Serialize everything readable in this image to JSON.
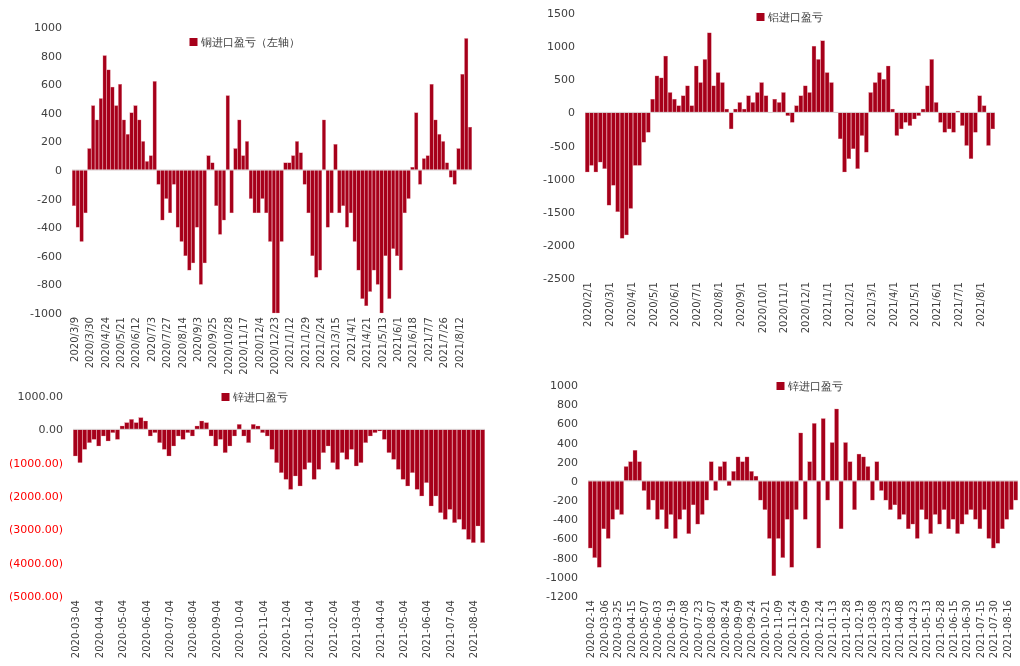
{
  "chart_data": [
    {
      "type": "bar",
      "legend": "top",
      "ylim": [
        -1000,
        1000
      ],
      "yticks": [
        -1000,
        -800,
        -600,
        -400,
        -200,
        0,
        200,
        400,
        600,
        800,
        1000
      ],
      "categories": [
        "2020/3/9",
        null,
        null,
        null,
        "2020/3/30",
        null,
        null,
        null,
        "2020/4/24",
        null,
        null,
        null,
        "2020/5/21",
        null,
        null,
        null,
        "2020/6/12",
        null,
        null,
        null,
        "2020/7/3",
        null,
        null,
        null,
        "2020/7/27",
        null,
        null,
        null,
        "2020/8/14",
        null,
        null,
        null,
        "2020/9/3",
        null,
        null,
        null,
        "2020/9/25",
        null,
        null,
        null,
        "2020/10/28",
        null,
        null,
        null,
        "2020/11/17",
        null,
        null,
        null,
        "2020/12/4",
        null,
        null,
        null,
        "2020/12/23",
        null,
        null,
        null,
        "2021/1/12",
        null,
        null,
        null,
        "2021/1/29",
        null,
        null,
        null,
        "2021/2/24",
        null,
        null,
        null,
        "2021/3/15",
        null,
        null,
        null,
        "2021/4/1",
        null,
        null,
        null,
        "2021/4/21",
        null,
        null,
        null,
        "2021/5/13",
        null,
        null,
        null,
        "2021/6/1",
        null,
        null,
        null,
        "2021/6/18",
        null,
        null,
        null,
        "2021/7/7",
        null,
        null,
        null,
        "2021/7/26",
        null,
        null,
        null,
        "2021/8/12",
        null,
        null,
        null
      ],
      "series": [
        {
          "name": "铜进口盈亏（左轴）",
          "color": "#a6001a",
          "values": [
            -250,
            -400,
            -500,
            -300,
            150,
            450,
            350,
            500,
            800,
            700,
            580,
            450,
            600,
            350,
            250,
            400,
            450,
            350,
            200,
            60,
            100,
            620,
            -100,
            -350,
            -200,
            -300,
            -100,
            -400,
            -500,
            -600,
            -700,
            -650,
            -400,
            -800,
            -650,
            100,
            50,
            -250,
            -450,
            -350,
            520,
            -300,
            150,
            350,
            100,
            200,
            -200,
            -300,
            -300,
            -200,
            -300,
            -500,
            -1000,
            -1000,
            -500,
            50,
            50,
            100,
            200,
            120,
            -100,
            -300,
            -600,
            -750,
            -700,
            350,
            -400,
            -300,
            180,
            -300,
            -250,
            -400,
            -300,
            -500,
            -700,
            -900,
            -950,
            -850,
            -700,
            -800,
            -1000,
            -600,
            -900,
            -550,
            -600,
            -700,
            -300,
            -200,
            20,
            400,
            -100,
            80,
            100,
            600,
            350,
            250,
            200,
            50,
            -50,
            -100,
            150,
            670,
            920,
            300
          ]
        }
      ]
    },
    {
      "type": "bar",
      "legend": "top",
      "ylim": [
        -2500,
        1500
      ],
      "yticks": [
        -2500,
        -2000,
        -1500,
        -1000,
        -500,
        0,
        500,
        1000,
        1500
      ],
      "categories": [
        "2020/2/1",
        null,
        null,
        null,
        null,
        "2020/3/1",
        null,
        null,
        null,
        null,
        "2020/4/1",
        null,
        null,
        null,
        null,
        "2020/5/1",
        null,
        null,
        null,
        null,
        "2020/6/1",
        null,
        null,
        null,
        null,
        "2020/7/1",
        null,
        null,
        null,
        null,
        "2020/8/1",
        null,
        null,
        null,
        null,
        "2020/9/1",
        null,
        null,
        null,
        null,
        "2020/10/1",
        null,
        null,
        null,
        null,
        "2020/11/1",
        null,
        null,
        null,
        null,
        "2020/12/1",
        null,
        null,
        null,
        null,
        "2021/1/1",
        null,
        null,
        null,
        null,
        "2021/2/1",
        null,
        null,
        null,
        null,
        "2021/3/1",
        null,
        null,
        null,
        null,
        "2021/4/1",
        null,
        null,
        null,
        null,
        "2021/5/1",
        null,
        null,
        null,
        null,
        "2021/6/1",
        null,
        null,
        null,
        null,
        "2021/7/1",
        null,
        null,
        null,
        null,
        "2021/8/1",
        null,
        null,
        null
      ],
      "series": [
        {
          "name": "铝进口盈亏",
          "color": "#a6001a",
          "values": [
            -900,
            -800,
            -900,
            -750,
            -850,
            -1400,
            -1100,
            -1500,
            -1900,
            -1850,
            -1450,
            -800,
            -800,
            -450,
            -300,
            200,
            550,
            520,
            850,
            300,
            200,
            100,
            250,
            400,
            100,
            700,
            450,
            800,
            1200,
            400,
            600,
            450,
            50,
            -250,
            50,
            150,
            50,
            250,
            150,
            300,
            450,
            250,
            0,
            200,
            150,
            300,
            -50,
            -150,
            100,
            250,
            400,
            300,
            1000,
            800,
            1080,
            600,
            450,
            0,
            -400,
            -900,
            -700,
            -550,
            -850,
            -350,
            -600,
            300,
            450,
            600,
            500,
            700,
            50,
            -350,
            -250,
            -150,
            -200,
            -100,
            -50,
            50,
            400,
            800,
            150,
            -150,
            -300,
            -250,
            -300,
            20,
            -200,
            -500,
            -700,
            -300,
            250,
            100,
            -500,
            -250
          ]
        }
      ]
    },
    {
      "type": "bar",
      "legend": "top",
      "ylim": [
        -5000,
        1000
      ],
      "yticks": [
        {
          "value": -5000,
          "label": "(5000.00)"
        },
        {
          "value": -4000,
          "label": "(4000.00)"
        },
        {
          "value": -3000,
          "label": "(3000.00)"
        },
        {
          "value": -2000,
          "label": "(2000.00)"
        },
        {
          "value": -1000,
          "label": "(1000.00)"
        },
        {
          "value": 0,
          "label": "0.00"
        },
        {
          "value": 1000,
          "label": "1000.00"
        }
      ],
      "categories": [
        "2020-03-04",
        null,
        null,
        null,
        null,
        "2020-04-04",
        null,
        null,
        null,
        null,
        "2020-05-04",
        null,
        null,
        null,
        null,
        "2020-06-04",
        null,
        null,
        null,
        null,
        "2020-07-04",
        null,
        null,
        null,
        null,
        "2020-08-04",
        null,
        null,
        null,
        null,
        "2020-09-04",
        null,
        null,
        null,
        null,
        "2020-10-04",
        null,
        null,
        null,
        null,
        "2020-11-04",
        null,
        null,
        null,
        null,
        "2020-12-04",
        null,
        null,
        null,
        null,
        "2021-01-04",
        null,
        null,
        null,
        null,
        "2021-02-04",
        null,
        null,
        null,
        null,
        "2021-03-04",
        null,
        null,
        null,
        null,
        "2021-04-04",
        null,
        null,
        null,
        null,
        "2021-05-04",
        null,
        null,
        null,
        null,
        "2021-06-04",
        null,
        null,
        null,
        null,
        "2021-07-04",
        null,
        null,
        null,
        null,
        "2021-08-04",
        null,
        null
      ],
      "series": [
        {
          "name": "锌进口盈亏",
          "color": "#a6001a",
          "values": [
            -800,
            -1000,
            -600,
            -400,
            -300,
            -500,
            -200,
            -350,
            -100,
            -300,
            100,
            200,
            300,
            200,
            350,
            250,
            -200,
            -100,
            -400,
            -600,
            -800,
            -500,
            -200,
            -300,
            -100,
            -200,
            100,
            250,
            200,
            -200,
            -500,
            -300,
            -700,
            -500,
            -200,
            150,
            -200,
            -400,
            150,
            100,
            -100,
            -200,
            -600,
            -1000,
            -1300,
            -1500,
            -1800,
            -1400,
            -1700,
            -1200,
            -1000,
            -1500,
            -1200,
            -700,
            -500,
            -1000,
            -1200,
            -700,
            -900,
            -600,
            -1100,
            -1000,
            -400,
            -200,
            -100,
            -50,
            -300,
            -700,
            -900,
            -1200,
            -1500,
            -1700,
            -1300,
            -1800,
            -2000,
            -1600,
            -2300,
            -2000,
            -2500,
            -2700,
            -2400,
            -2800,
            -2700,
            -3000,
            -3300,
            -3400,
            -2900,
            -3400
          ]
        }
      ]
    },
    {
      "type": "bar",
      "legend": "top",
      "ylim": [
        -1200,
        1000
      ],
      "yticks": [
        -1200,
        -1000,
        -800,
        -600,
        -400,
        -200,
        0,
        200,
        400,
        600,
        800,
        1000
      ],
      "categories": [
        "2020-02-14",
        null,
        null,
        "2020-03-06",
        null,
        null,
        "2020-03-25",
        null,
        null,
        "2020-04-15",
        null,
        null,
        "2020-05-07",
        null,
        null,
        "2020-06-03",
        null,
        null,
        "2020-06-19",
        null,
        null,
        "2020-07-08",
        null,
        null,
        "2020-07-23",
        null,
        null,
        "2020-08-07",
        null,
        null,
        "2020-08-24",
        null,
        null,
        "2020-09-09",
        null,
        null,
        "2020-09-24",
        null,
        null,
        "2020-10-21",
        null,
        null,
        "2020-11-09",
        null,
        null,
        "2020-11-24",
        null,
        null,
        "2020-12-09",
        null,
        null,
        "2020-12-24",
        null,
        null,
        "2021-01-13",
        null,
        null,
        "2021-01-28",
        null,
        null,
        "2021-02-19",
        null,
        null,
        "2021-03-08",
        null,
        null,
        "2021-03-23",
        null,
        null,
        "2021-04-08",
        null,
        null,
        "2021-04-23",
        null,
        null,
        "2021-05-13",
        null,
        null,
        "2021-05-28",
        null,
        null,
        "2021-06-15",
        null,
        null,
        "2021-06-30",
        null,
        null,
        "2021-07-15",
        null,
        null,
        "2021-07-30",
        null,
        null,
        "2021-08-16",
        null,
        null
      ],
      "series": [
        {
          "name": "锌进口盈亏",
          "color": "#a6001a",
          "values": [
            -700,
            -800,
            -900,
            -500,
            -600,
            -400,
            -300,
            -350,
            150,
            200,
            320,
            200,
            -100,
            -300,
            -200,
            -400,
            -300,
            -500,
            -350,
            -600,
            -400,
            -300,
            -550,
            -250,
            -450,
            -350,
            -200,
            200,
            -100,
            150,
            200,
            -50,
            100,
            250,
            200,
            250,
            100,
            50,
            -200,
            -300,
            -600,
            -990,
            -600,
            -800,
            -400,
            -900,
            -300,
            500,
            -400,
            200,
            600,
            -700,
            650,
            -200,
            400,
            750,
            -500,
            400,
            200,
            -300,
            280,
            250,
            150,
            -200,
            200,
            -100,
            -200,
            -300,
            -250,
            -400,
            -350,
            -500,
            -450,
            -600,
            -300,
            -400,
            -550,
            -350,
            -450,
            -300,
            -500,
            -400,
            -550,
            -450,
            -350,
            -300,
            -400,
            -500,
            -300,
            -600,
            -700,
            -650,
            -500,
            -400,
            -300,
            -200
          ]
        }
      ]
    }
  ]
}
